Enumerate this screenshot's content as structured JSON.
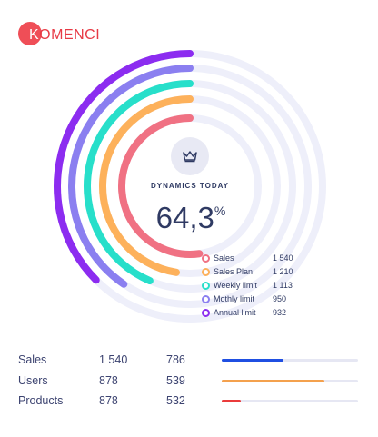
{
  "brand": {
    "logo_text_first": "K",
    "logo_text_rest": "OMENCI",
    "logo_color": "#ef4e57"
  },
  "center": {
    "icon": "crown-icon",
    "label": "DYNAMICS TODAY",
    "value": "64,3",
    "unit": "%"
  },
  "legend": [
    {
      "label": "Sales",
      "value": "1 540",
      "color": "#f07183"
    },
    {
      "label": "Sales Plan",
      "value": "1 210",
      "color": "#fdb15b"
    },
    {
      "label": "Weekly limit",
      "value": "1 113",
      "color": "#27dfca"
    },
    {
      "label": "Mothly limit",
      "value": "950",
      "color": "#8b7ff0"
    },
    {
      "label": "Annual limit",
      "value": "932",
      "color": "#8c2cf0"
    }
  ],
  "stats": [
    {
      "name": "Sales",
      "value1": "1 540",
      "value2": "786",
      "progress": 0.45,
      "color": "#1f4fe2"
    },
    {
      "name": "Users",
      "value1": "878",
      "value2": "539",
      "progress": 0.75,
      "color": "#f4a14e"
    },
    {
      "name": "Products",
      "value1": "878",
      "value2": "532",
      "progress": 0.14,
      "color": "#ea3b3b"
    }
  ],
  "chart_data": {
    "type": "radial-bar",
    "center_value_percent": 64.3,
    "series": [
      {
        "name": "Sales",
        "value": 1540,
        "color": "#f07183"
      },
      {
        "name": "Sales Plan",
        "value": 1210,
        "color": "#fdb15b"
      },
      {
        "name": "Weekly limit",
        "value": 1113,
        "color": "#27dfca"
      },
      {
        "name": "Mothly limit",
        "value": 950,
        "color": "#8b7ff0"
      },
      {
        "name": "Annual limit",
        "value": 932,
        "color": "#8c2cf0"
      }
    ],
    "track_color": "#eeeffa"
  }
}
